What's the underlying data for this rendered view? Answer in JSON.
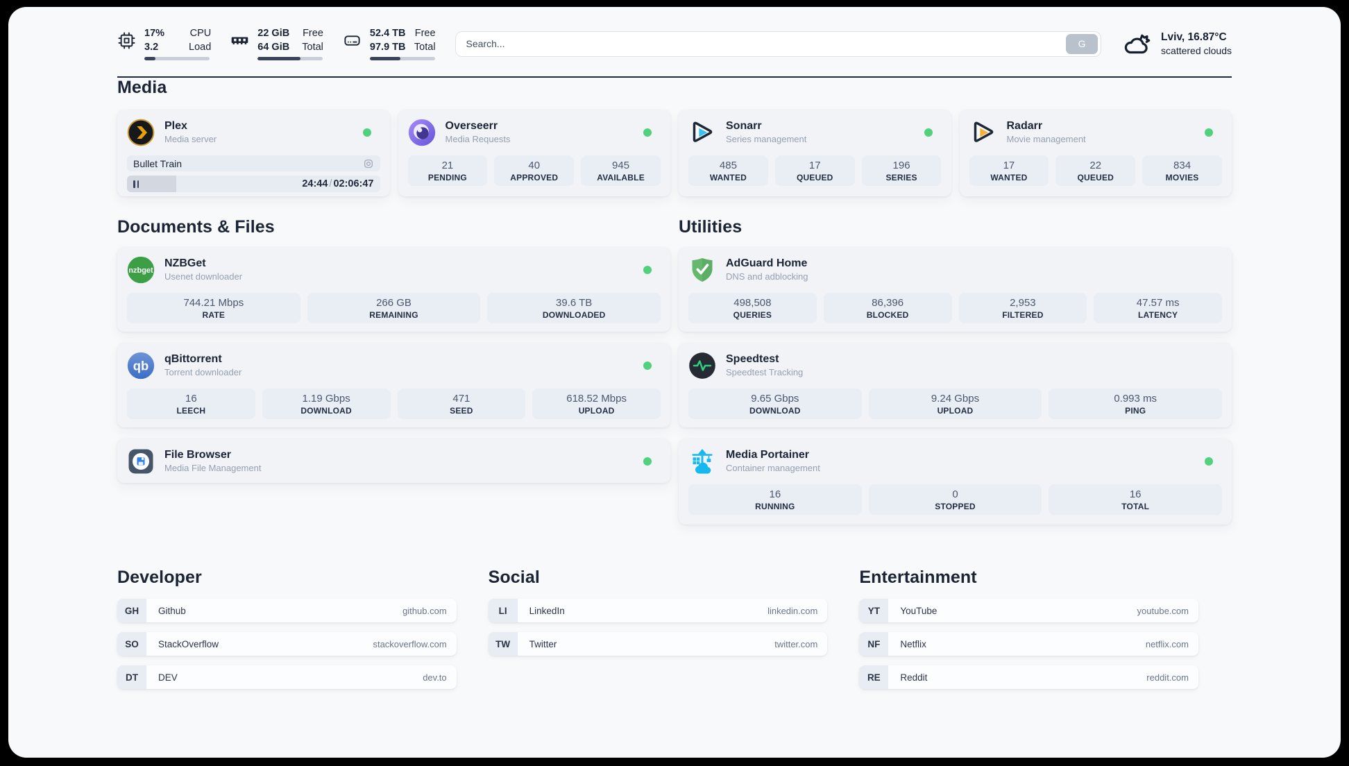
{
  "system": {
    "cpu": {
      "value1": "17%",
      "value2": "3.2",
      "label1": "CPU",
      "label2": "Load",
      "progress": 17
    },
    "memory": {
      "value1": "22 GiB",
      "value2": "64 GiB",
      "label1": "Free",
      "label2": "Total",
      "progress": 66
    },
    "disk": {
      "value1": "52.4 TB",
      "value2": "97.9 TB",
      "label1": "Free",
      "label2": "Total",
      "progress": 47
    }
  },
  "search": {
    "placeholder": "Search...",
    "button_label": "G"
  },
  "weather": {
    "summary": "Lviv, 16.87°C",
    "condition": "scattered clouds"
  },
  "colors": {
    "status_green": "#52d17c",
    "plex_amber": "#e5a00d",
    "sonarr_blue": "#36c3f1",
    "radarr_amber": "#f6b13d",
    "portainer_blue": "#16b8f0"
  },
  "sections": {
    "media": {
      "title": "Media",
      "plex": {
        "title": "Plex",
        "subtitle": "Media server",
        "now_playing": "Bullet Train",
        "time_current": "24:44",
        "time_separator": "/",
        "time_total": "02:06:47",
        "progress_percent": 19.5
      },
      "overseerr": {
        "title": "Overseerr",
        "subtitle": "Media Requests",
        "stats": [
          {
            "value": "21",
            "label": "PENDING"
          },
          {
            "value": "40",
            "label": "APPROVED"
          },
          {
            "value": "945",
            "label": "AVAILABLE"
          }
        ]
      },
      "sonarr": {
        "title": "Sonarr",
        "subtitle": "Series management",
        "stats": [
          {
            "value": "485",
            "label": "WANTED"
          },
          {
            "value": "17",
            "label": "QUEUED"
          },
          {
            "value": "196",
            "label": "SERIES"
          }
        ]
      },
      "radarr": {
        "title": "Radarr",
        "subtitle": "Movie management",
        "stats": [
          {
            "value": "17",
            "label": "WANTED"
          },
          {
            "value": "22",
            "label": "QUEUED"
          },
          {
            "value": "834",
            "label": "MOVIES"
          }
        ]
      }
    },
    "documents": {
      "title": "Documents & Files",
      "nzbget": {
        "title": "NZBGet",
        "subtitle": "Usenet downloader",
        "icon_text": "nzbget",
        "stats": [
          {
            "value": "744.21 Mbps",
            "label": "RATE"
          },
          {
            "value": "266 GB",
            "label": "REMAINING"
          },
          {
            "value": "39.6 TB",
            "label": "DOWNLOADED"
          }
        ]
      },
      "qbittorrent": {
        "title": "qBittorrent",
        "subtitle": "Torrent downloader",
        "icon_text": "qb",
        "stats": [
          {
            "value": "16",
            "label": "LEECH"
          },
          {
            "value": "1.19 Gbps",
            "label": "DOWNLOAD"
          },
          {
            "value": "471",
            "label": "SEED"
          },
          {
            "value": "618.52 Mbps",
            "label": "UPLOAD"
          }
        ]
      },
      "filebrowser": {
        "title": "File Browser",
        "subtitle": "Media File Management"
      }
    },
    "utilities": {
      "title": "Utilities",
      "adguard": {
        "title": "AdGuard Home",
        "subtitle": "DNS and adblocking",
        "stats": [
          {
            "value": "498,508",
            "label": "QUERIES"
          },
          {
            "value": "86,396",
            "label": "BLOCKED"
          },
          {
            "value": "2,953",
            "label": "FILTERED"
          },
          {
            "value": "47.57 ms",
            "label": "LATENCY"
          }
        ]
      },
      "speedtest": {
        "title": "Speedtest",
        "subtitle": "Speedtest Tracking",
        "stats": [
          {
            "value": "9.65 Gbps",
            "label": "DOWNLOAD"
          },
          {
            "value": "9.24 Gbps",
            "label": "UPLOAD"
          },
          {
            "value": "0.993 ms",
            "label": "PING"
          }
        ]
      },
      "portainer": {
        "title": "Media Portainer",
        "subtitle": "Container management",
        "stats": [
          {
            "value": "16",
            "label": "RUNNING"
          },
          {
            "value": "0",
            "label": "STOPPED"
          },
          {
            "value": "16",
            "label": "TOTAL"
          }
        ]
      }
    },
    "links": {
      "developer": {
        "title": "Developer",
        "items": [
          {
            "badge": "GH",
            "name": "Github",
            "url": "github.com"
          },
          {
            "badge": "SO",
            "name": "StackOverflow",
            "url": "stackoverflow.com"
          },
          {
            "badge": "DT",
            "name": "DEV",
            "url": "dev.to"
          }
        ]
      },
      "social": {
        "title": "Social",
        "items": [
          {
            "badge": "LI",
            "name": "LinkedIn",
            "url": "linkedin.com"
          },
          {
            "badge": "TW",
            "name": "Twitter",
            "url": "twitter.com"
          }
        ]
      },
      "entertainment": {
        "title": "Entertainment",
        "items": [
          {
            "badge": "YT",
            "name": "YouTube",
            "url": "youtube.com"
          },
          {
            "badge": "NF",
            "name": "Netflix",
            "url": "netflix.com"
          },
          {
            "badge": "RE",
            "name": "Reddit",
            "url": "reddit.com"
          }
        ]
      }
    }
  }
}
